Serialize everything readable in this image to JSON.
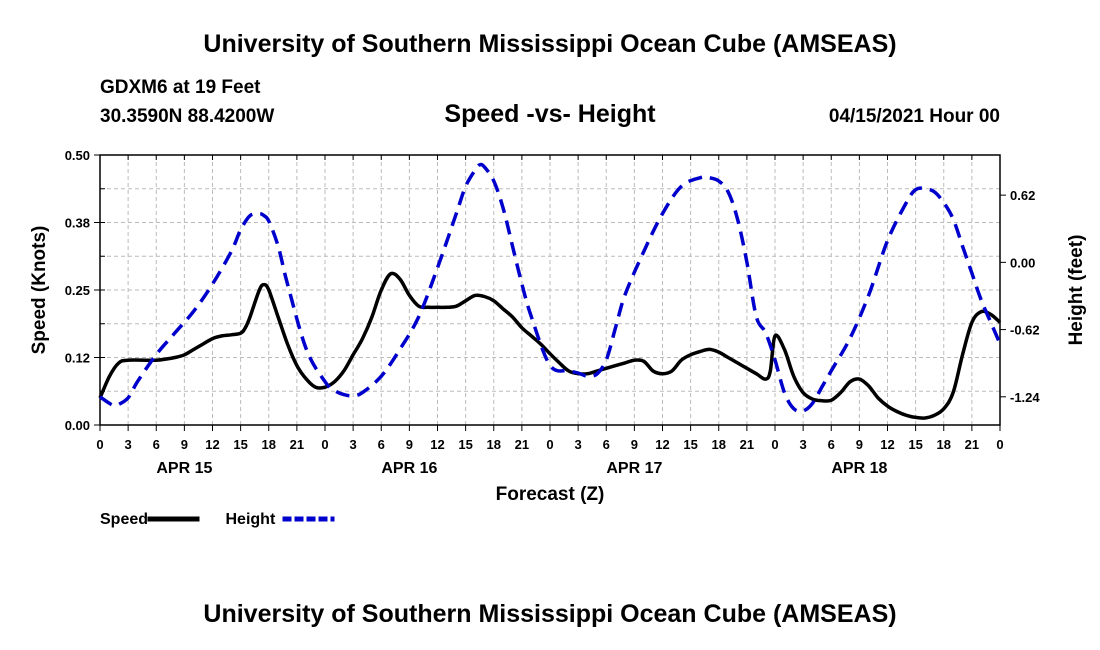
{
  "header": {
    "title_top": "University of Southern Mississippi Ocean Cube (AMSEAS)",
    "station": "GDXM6 at 19 Feet",
    "coords": "30.3590N  88.4200W",
    "subtitle": "Speed -vs- Height",
    "datetime": "04/15/2021 Hour 00"
  },
  "footer": {
    "title_bottom": "University of Southern Mississippi Ocean Cube (AMSEAS)"
  },
  "chart_data": {
    "type": "line",
    "title": "Speed -vs- Height",
    "xlabel": "Forecast (Z)",
    "ylabel": "Speed (Knots)",
    "y2label": "Height (feet)",
    "x_range_hours": [
      0,
      96
    ],
    "ylim": [
      0,
      0.5
    ],
    "y2lim": [
      -1.5,
      0.99
    ],
    "yticks": [
      "0.00",
      "0.12",
      "0.25",
      "0.38",
      "0.50"
    ],
    "yticks_values": [
      0,
      0.125,
      0.25,
      0.375,
      0.5
    ],
    "y2ticks": [
      "0.62",
      "0.00",
      "-0.62",
      "-1.24"
    ],
    "y2ticks_values": [
      0.62,
      0,
      -0.62,
      -1.24
    ],
    "xtick_labels": [
      "0",
      "3",
      "6",
      "9",
      "12",
      "15",
      "18",
      "21",
      "0",
      "3",
      "6",
      "9",
      "12",
      "15",
      "18",
      "21",
      "0",
      "3",
      "6",
      "9",
      "12",
      "15",
      "18",
      "21",
      "0",
      "3",
      "6",
      "9",
      "12",
      "15",
      "18",
      "21",
      "0"
    ],
    "day_labels": [
      {
        "label": "APR 15",
        "hour": 9
      },
      {
        "label": "APR 16",
        "hour": 33
      },
      {
        "label": "APR 17",
        "hour": 57
      },
      {
        "label": "APR 18",
        "hour": 81
      }
    ],
    "grid": true,
    "legend": [
      {
        "name": "Speed",
        "style": "solid",
        "color": "#000000"
      },
      {
        "name": "Height",
        "style": "dashed",
        "color": "#0000cc"
      }
    ],
    "series": [
      {
        "name": "Speed",
        "axis": "left",
        "color": "#000000",
        "x": [
          0,
          1,
          2,
          3,
          5,
          6,
          7,
          8,
          9,
          10,
          11,
          12,
          13,
          14,
          15,
          15.5,
          16,
          17,
          17.5,
          18,
          19,
          20,
          21,
          22,
          23,
          24,
          25,
          26,
          27,
          28,
          29,
          30,
          31,
          32,
          33,
          34,
          35,
          36,
          37,
          38,
          39,
          40,
          41,
          42,
          43,
          44,
          45,
          46,
          47,
          48,
          49,
          50,
          51,
          52,
          53,
          54,
          55,
          56,
          57,
          58,
          59,
          60,
          61,
          62,
          63,
          64,
          65,
          66,
          67,
          68,
          69,
          70,
          71,
          71.5,
          72,
          73,
          74,
          75,
          76,
          77,
          78,
          79,
          80,
          81,
          82,
          83,
          84,
          85,
          86,
          87,
          88,
          89,
          90,
          91,
          92,
          93,
          94,
          95,
          96
        ],
        "y": [
          0.05,
          0.09,
          0.115,
          0.12,
          0.12,
          0.12,
          0.122,
          0.125,
          0.13,
          0.14,
          0.15,
          0.16,
          0.165,
          0.167,
          0.17,
          0.18,
          0.2,
          0.25,
          0.26,
          0.25,
          0.2,
          0.15,
          0.11,
          0.085,
          0.07,
          0.07,
          0.08,
          0.1,
          0.13,
          0.16,
          0.2,
          0.25,
          0.28,
          0.27,
          0.24,
          0.22,
          0.218,
          0.218,
          0.218,
          0.22,
          0.23,
          0.24,
          0.238,
          0.23,
          0.215,
          0.2,
          0.18,
          0.165,
          0.15,
          0.132,
          0.115,
          0.1,
          0.095,
          0.095,
          0.1,
          0.105,
          0.11,
          0.115,
          0.12,
          0.118,
          0.1,
          0.095,
          0.1,
          0.12,
          0.13,
          0.136,
          0.14,
          0.135,
          0.125,
          0.115,
          0.105,
          0.095,
          0.085,
          0.1,
          0.165,
          0.14,
          0.09,
          0.06,
          0.048,
          0.045,
          0.046,
          0.06,
          0.08,
          0.085,
          0.072,
          0.05,
          0.035,
          0.025,
          0.018,
          0.014,
          0.013,
          0.018,
          0.03,
          0.06,
          0.13,
          0.19,
          0.21,
          0.205,
          0.19
        ]
      },
      {
        "name": "Height",
        "axis": "right",
        "color": "#0000cc",
        "x": [
          0,
          1,
          1.5,
          2,
          3,
          4,
          6,
          8,
          10,
          12,
          14,
          15,
          16,
          17,
          17.5,
          18,
          19,
          20,
          22,
          24,
          25,
          26,
          27,
          28,
          30,
          32,
          34,
          36,
          38,
          39,
          40,
          40.5,
          41,
          42,
          43,
          44,
          45,
          46,
          48,
          50,
          51,
          52,
          53,
          54,
          55,
          56,
          58,
          60,
          62,
          64,
          65,
          66,
          67,
          68,
          69,
          70,
          71,
          72,
          73,
          74,
          75,
          76,
          77,
          78,
          80,
          82,
          84,
          86,
          87,
          88,
          89,
          90,
          91,
          92,
          93,
          94,
          95,
          96
        ],
        "y": [
          -1.24,
          -1.3,
          -1.32,
          -1.31,
          -1.25,
          -1.1,
          -0.85,
          -0.65,
          -0.45,
          -0.2,
          0.1,
          0.3,
          0.43,
          0.45,
          0.43,
          0.38,
          0.15,
          -0.2,
          -0.8,
          -1.1,
          -1.18,
          -1.22,
          -1.23,
          -1.2,
          -1.05,
          -0.8,
          -0.5,
          -0.05,
          0.45,
          0.7,
          0.85,
          0.9,
          0.88,
          0.75,
          0.5,
          0.15,
          -0.2,
          -0.5,
          -0.95,
          -1.0,
          -1.02,
          -1.05,
          -1.03,
          -0.9,
          -0.6,
          -0.3,
          0.1,
          0.45,
          0.7,
          0.78,
          0.78,
          0.75,
          0.65,
          0.4,
          0.0,
          -0.5,
          -0.65,
          -0.9,
          -1.2,
          -1.35,
          -1.37,
          -1.3,
          -1.15,
          -1.0,
          -0.7,
          -0.3,
          0.2,
          0.55,
          0.67,
          0.68,
          0.65,
          0.55,
          0.4,
          0.15,
          -0.1,
          -0.35,
          -0.55,
          -0.75
        ]
      }
    ]
  }
}
